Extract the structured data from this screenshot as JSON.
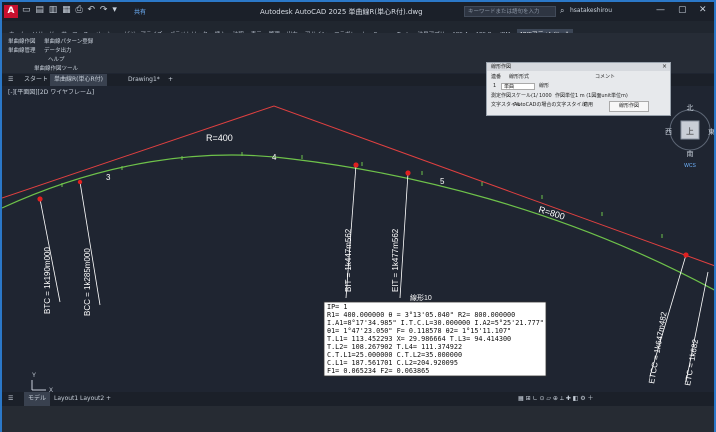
{
  "titlebar": {
    "app_logo": "A",
    "share_label": "共有",
    "title": "Autodesk AutoCAD 2025  単曲線R(単心R付).dwg",
    "search_placeholder": "キーワードまたは語句を入力",
    "user_name": "hsatakeshirou"
  },
  "menu": {
    "items": [
      "ホーム",
      "ソリッド",
      "サーフェス",
      "メッシュ",
      "ビジュアライズ",
      "パラメトリック",
      "挿入",
      "注釈",
      "表示",
      "管理",
      "出力",
      "アドイン",
      "コラボレート",
      "Express Tools",
      "注目アプリ",
      "APS-A",
      "APS-RoadBM",
      "MYCアディンツール"
    ],
    "active_index": 17
  },
  "ribbon": {
    "items": [
      "単曲線作図",
      "単曲線パターン登録",
      "単曲線管理",
      "データ出力",
      "ヘルプ",
      "単曲線作図ツール"
    ]
  },
  "tabs": {
    "items": [
      "スタート",
      "単曲線R(単心R付)",
      "Drawing1*"
    ]
  },
  "viewport_label": "[-][平面図][2D ワイヤフレーム]",
  "drawing": {
    "labels": {
      "r400": "R=400",
      "r800": "R=800",
      "n3": "3",
      "n4": "4",
      "n5": "5",
      "bc1": "BTC = 1k190m000",
      "bc2": "BCC = 1k285m000",
      "bc3": "BIT = 1k447m562",
      "bc4": "EIT = 1k477m562",
      "bc5": "ETCC = 1k647m482",
      "bc6": "ETC = 1k682"
    },
    "table_title": "線形10",
    "table_rows": [
      "IP=    1",
      "R1=  400.000000 θ =  3°13'05.040\" R2=  800.000000",
      "I.A1=8°17'34.985\" I.T.C.L=30.000000 I.A2=5°25'21.777\"",
      "θ1= 1°47'23.050\" F=     0.118578 θ2= 1°15'11.107\"",
      "T.L1= 113.452293 X=    29.986664 T.L3=  94.414300",
      "T.L2= 108.267902              T.L4= 111.374922",
      "C.T.L1=25.000000              C.T.L2=35.000000",
      "C.L1= 187.561701              C.L2=204.920095",
      "F1=    0.065234               F2=     0.063865"
    ]
  },
  "viewcube": {
    "north": "北",
    "south": "南",
    "west": "西",
    "east": "東",
    "top": "上",
    "wcs": "WCS"
  },
  "dialog": {
    "title": "線形作図",
    "col1": "連番",
    "col2": "線形形式",
    "col3": "コメント",
    "row_num": "1",
    "row_type": "単曲",
    "row_comment": "線形",
    "scale_label": "測定作図スケール(1/",
    "scale_value": "1000",
    "unit_label": "作図単位",
    "unit_value": "1 m (1図面unit単位m)",
    "style_label": "文字スタイル",
    "style_value": "AutoCADの場合の文字スタイル",
    "apply_label": "適用",
    "button": "線形作図"
  },
  "layout_tabs": {
    "model": "モデル",
    "layout1": "Layout1",
    "layout2": "Layout2",
    "add": "+"
  },
  "ucs": {
    "x": "X",
    "y": "Y"
  },
  "colors": {
    "background": "#1f2531",
    "tangent": "#e04040",
    "curve": "#6ec24a",
    "text": "#ffffff",
    "table_bg": "#ffffff",
    "accent": "#2b78c8"
  }
}
